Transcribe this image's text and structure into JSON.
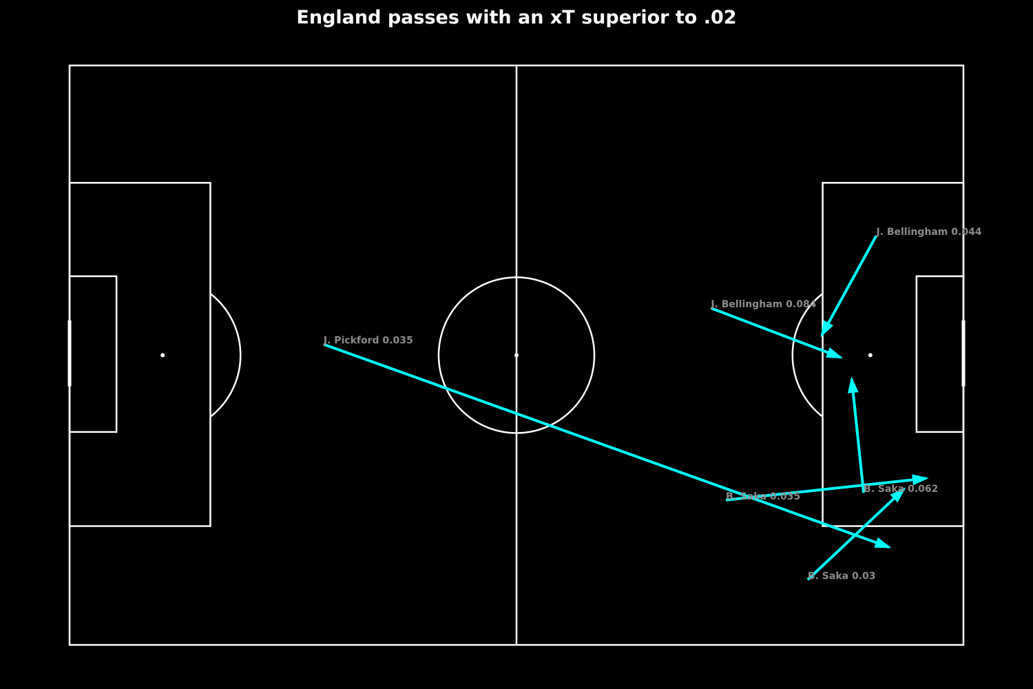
{
  "chart_data": {
    "type": "pass-map",
    "title": "England passes with an xT superior to .02",
    "pitch": {
      "length": 120,
      "width": 80
    },
    "colors": {
      "background": "#000000",
      "lines": "#ffffff",
      "arrows": "#00ffff",
      "labels": "#8c8c8c"
    },
    "passes": [
      {
        "player": "J. Pickford",
        "xT": "0.035",
        "start": [
          34.1,
          38.5
        ],
        "end": [
          110.0,
          66.5
        ]
      },
      {
        "player": "J. Bellingham",
        "xT": "0.084",
        "start": [
          86.1,
          33.5
        ],
        "end": [
          103.5,
          40.3
        ]
      },
      {
        "player": "J. Bellingham",
        "xT": "0.044",
        "start": [
          108.3,
          23.5
        ],
        "end": [
          101.0,
          37.2
        ]
      },
      {
        "player": "B. Saka",
        "xT": "0.062",
        "start": [
          106.6,
          59.0
        ],
        "end": [
          105.0,
          43.3
        ]
      },
      {
        "player": "B. Saka",
        "xT": "0.035",
        "start": [
          88.1,
          60.0
        ],
        "end": [
          115.0,
          57.0
        ]
      },
      {
        "player": "B. Saka",
        "xT": "0.03",
        "start": [
          99.1,
          71.0
        ],
        "end": [
          112.0,
          58.5
        ]
      }
    ]
  }
}
